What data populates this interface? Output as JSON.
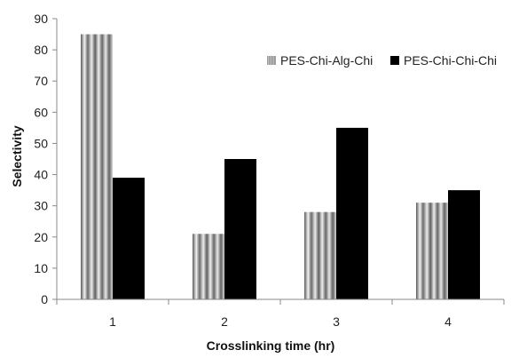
{
  "chart_data": {
    "type": "bar",
    "title": "",
    "xlabel": "Crosslinking time (hr)",
    "ylabel": "Selectivity",
    "categories": [
      "1",
      "2",
      "3",
      "4"
    ],
    "yticks": [
      "0",
      "10",
      "20",
      "30",
      "40",
      "50",
      "60",
      "70",
      "80",
      "90"
    ],
    "ylim": [
      0,
      90
    ],
    "grid": false,
    "legend_position": "top-right",
    "series": [
      {
        "name": "PES-Chi-Alg-Chi",
        "values": [
          85,
          21,
          28,
          31
        ],
        "fill": "striped-gray"
      },
      {
        "name": "PES-Chi-Chi-Chi",
        "values": [
          39,
          45,
          55,
          35
        ],
        "color": "#000000"
      }
    ]
  }
}
